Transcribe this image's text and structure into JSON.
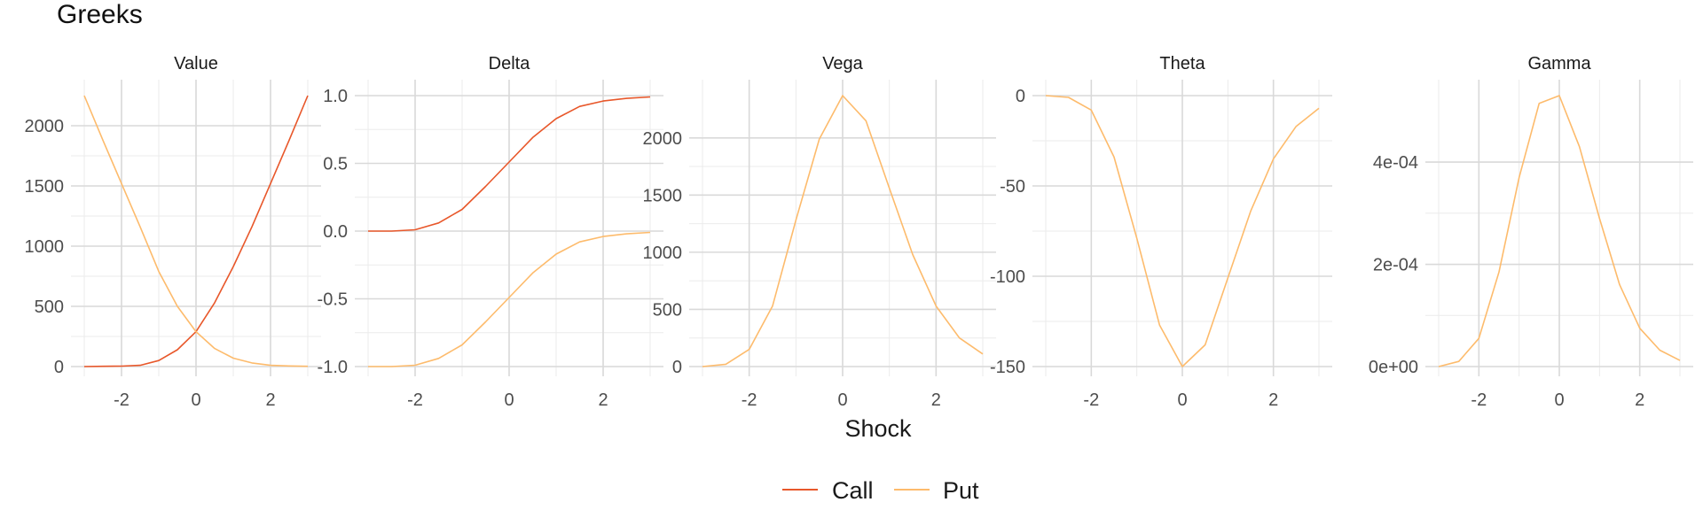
{
  "title": "Greeks",
  "chart_data": {
    "type": "line",
    "title": "Greeks",
    "xlabel": "Shock",
    "x": [
      -3.0,
      -2.5,
      -2.0,
      -1.5,
      -1.0,
      -0.5,
      0.0,
      0.5,
      1.0,
      1.5,
      2.0,
      2.5,
      3.0
    ],
    "x_ticks": [
      -2,
      0,
      2
    ],
    "x_tick_labels": [
      "-2",
      "0",
      "2"
    ],
    "xlim": [
      -3.0,
      3.0
    ],
    "legend": {
      "position": "bottom",
      "entries": [
        {
          "name": "Call",
          "color": "#e8572a"
        },
        {
          "name": "Put",
          "color": "#fdbb6c"
        }
      ]
    },
    "panels": [
      {
        "name": "Value",
        "ylim": [
          0,
          2250
        ],
        "y_ticks": [
          0,
          500,
          1000,
          1500,
          2000
        ],
        "y_tick_labels": [
          "0",
          "500",
          "1000",
          "1500",
          "2000"
        ],
        "series": [
          {
            "name": "Call",
            "values": [
              0,
              2,
              4,
              10,
              50,
              140,
              290,
              530,
              830,
              1160,
              1520,
              1880,
              2250
            ]
          },
          {
            "name": "Put",
            "values": [
              2250,
              1880,
              1520,
              1160,
              790,
              500,
              290,
              150,
              70,
              30,
              10,
              5,
              2
            ]
          }
        ]
      },
      {
        "name": "Delta",
        "ylim": [
          -1.0,
          1.0
        ],
        "y_ticks": [
          -1.0,
          -0.5,
          0.0,
          0.5,
          1.0
        ],
        "y_tick_labels": [
          "-1.0",
          "-0.5",
          "0.0",
          "0.5",
          "1.0"
        ],
        "series": [
          {
            "name": "Call",
            "values": [
              0.0,
              0.0,
              0.01,
              0.06,
              0.16,
              0.33,
              0.51,
              0.69,
              0.83,
              0.92,
              0.96,
              0.98,
              0.99
            ]
          },
          {
            "name": "Put",
            "values": [
              -1.0,
              -1.0,
              -0.99,
              -0.94,
              -0.84,
              -0.67,
              -0.49,
              -0.31,
              -0.17,
              -0.08,
              -0.04,
              -0.02,
              -0.01
            ]
          }
        ]
      },
      {
        "name": "Vega",
        "ylim": [
          0,
          2370
        ],
        "y_ticks": [
          0,
          500,
          1000,
          1500,
          2000
        ],
        "y_tick_labels": [
          "0",
          "500",
          "1000",
          "1500",
          "2000"
        ],
        "series": [
          {
            "name": "Put",
            "values": [
              0,
              20,
              150,
              530,
              1280,
              1990,
              2370,
              2150,
              1560,
              980,
              530,
              250,
              110
            ]
          }
        ]
      },
      {
        "name": "Theta",
        "ylim": [
          -150,
          0
        ],
        "y_ticks": [
          -150,
          -100,
          -50,
          0
        ],
        "y_tick_labels": [
          "-150",
          "-100",
          "-50",
          "0"
        ],
        "series": [
          {
            "name": "Put",
            "values": [
              0,
              -1,
              -8,
              -34,
              -79,
              -127,
              -150,
              -138,
              -101,
              -64,
              -35,
              -17,
              -7
            ]
          }
        ]
      },
      {
        "name": "Gamma",
        "ylim": [
          0,
          0.00053
        ],
        "y_ticks": [
          0,
          0.0002,
          0.0004
        ],
        "y_tick_labels": [
          "0e+00",
          "2e-04",
          "4e-04"
        ],
        "series": [
          {
            "name": "Put",
            "values": [
              0,
              1e-05,
              5.5e-05,
              0.000185,
              0.00037,
              0.000515,
              0.00053,
              0.00043,
              0.00029,
              0.00016,
              7.5e-05,
              3.2e-05,
              1.2e-05
            ]
          }
        ]
      }
    ]
  }
}
